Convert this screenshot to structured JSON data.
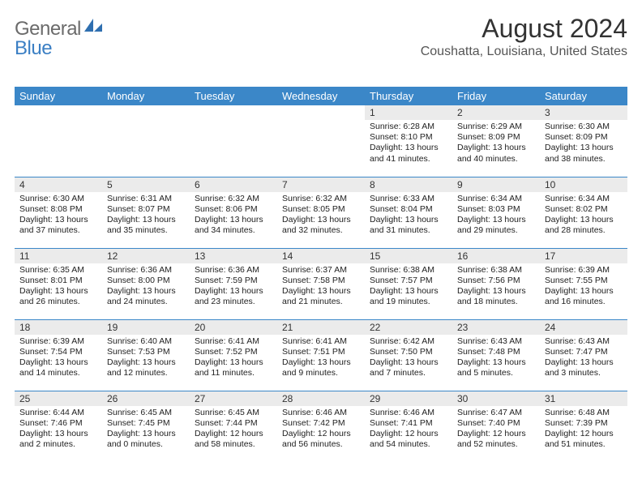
{
  "logo": {
    "general": "General",
    "blue": "Blue"
  },
  "title": "August 2024",
  "location": "Coushatta, Louisiana, United States",
  "colors": {
    "header_bg": "#3b87c8",
    "header_text": "#ffffff",
    "daynum_bg": "#ebebeb",
    "row_border": "#3b87c8",
    "logo_gray": "#6b6b6b",
    "logo_blue": "#3b7fc4"
  },
  "weekdays": [
    "Sunday",
    "Monday",
    "Tuesday",
    "Wednesday",
    "Thursday",
    "Friday",
    "Saturday"
  ],
  "weeks": [
    [
      {
        "empty": true
      },
      {
        "empty": true
      },
      {
        "empty": true
      },
      {
        "empty": true
      },
      {
        "n": "1",
        "sr": "6:28 AM",
        "ss": "8:10 PM",
        "dl": "13 hours and 41 minutes."
      },
      {
        "n": "2",
        "sr": "6:29 AM",
        "ss": "8:09 PM",
        "dl": "13 hours and 40 minutes."
      },
      {
        "n": "3",
        "sr": "6:30 AM",
        "ss": "8:09 PM",
        "dl": "13 hours and 38 minutes."
      }
    ],
    [
      {
        "n": "4",
        "sr": "6:30 AM",
        "ss": "8:08 PM",
        "dl": "13 hours and 37 minutes."
      },
      {
        "n": "5",
        "sr": "6:31 AM",
        "ss": "8:07 PM",
        "dl": "13 hours and 35 minutes."
      },
      {
        "n": "6",
        "sr": "6:32 AM",
        "ss": "8:06 PM",
        "dl": "13 hours and 34 minutes."
      },
      {
        "n": "7",
        "sr": "6:32 AM",
        "ss": "8:05 PM",
        "dl": "13 hours and 32 minutes."
      },
      {
        "n": "8",
        "sr": "6:33 AM",
        "ss": "8:04 PM",
        "dl": "13 hours and 31 minutes."
      },
      {
        "n": "9",
        "sr": "6:34 AM",
        "ss": "8:03 PM",
        "dl": "13 hours and 29 minutes."
      },
      {
        "n": "10",
        "sr": "6:34 AM",
        "ss": "8:02 PM",
        "dl": "13 hours and 28 minutes."
      }
    ],
    [
      {
        "n": "11",
        "sr": "6:35 AM",
        "ss": "8:01 PM",
        "dl": "13 hours and 26 minutes."
      },
      {
        "n": "12",
        "sr": "6:36 AM",
        "ss": "8:00 PM",
        "dl": "13 hours and 24 minutes."
      },
      {
        "n": "13",
        "sr": "6:36 AM",
        "ss": "7:59 PM",
        "dl": "13 hours and 23 minutes."
      },
      {
        "n": "14",
        "sr": "6:37 AM",
        "ss": "7:58 PM",
        "dl": "13 hours and 21 minutes."
      },
      {
        "n": "15",
        "sr": "6:38 AM",
        "ss": "7:57 PM",
        "dl": "13 hours and 19 minutes."
      },
      {
        "n": "16",
        "sr": "6:38 AM",
        "ss": "7:56 PM",
        "dl": "13 hours and 18 minutes."
      },
      {
        "n": "17",
        "sr": "6:39 AM",
        "ss": "7:55 PM",
        "dl": "13 hours and 16 minutes."
      }
    ],
    [
      {
        "n": "18",
        "sr": "6:39 AM",
        "ss": "7:54 PM",
        "dl": "13 hours and 14 minutes."
      },
      {
        "n": "19",
        "sr": "6:40 AM",
        "ss": "7:53 PM",
        "dl": "13 hours and 12 minutes."
      },
      {
        "n": "20",
        "sr": "6:41 AM",
        "ss": "7:52 PM",
        "dl": "13 hours and 11 minutes."
      },
      {
        "n": "21",
        "sr": "6:41 AM",
        "ss": "7:51 PM",
        "dl": "13 hours and 9 minutes."
      },
      {
        "n": "22",
        "sr": "6:42 AM",
        "ss": "7:50 PM",
        "dl": "13 hours and 7 minutes."
      },
      {
        "n": "23",
        "sr": "6:43 AM",
        "ss": "7:48 PM",
        "dl": "13 hours and 5 minutes."
      },
      {
        "n": "24",
        "sr": "6:43 AM",
        "ss": "7:47 PM",
        "dl": "13 hours and 3 minutes."
      }
    ],
    [
      {
        "n": "25",
        "sr": "6:44 AM",
        "ss": "7:46 PM",
        "dl": "13 hours and 2 minutes."
      },
      {
        "n": "26",
        "sr": "6:45 AM",
        "ss": "7:45 PM",
        "dl": "13 hours and 0 minutes."
      },
      {
        "n": "27",
        "sr": "6:45 AM",
        "ss": "7:44 PM",
        "dl": "12 hours and 58 minutes."
      },
      {
        "n": "28",
        "sr": "6:46 AM",
        "ss": "7:42 PM",
        "dl": "12 hours and 56 minutes."
      },
      {
        "n": "29",
        "sr": "6:46 AM",
        "ss": "7:41 PM",
        "dl": "12 hours and 54 minutes."
      },
      {
        "n": "30",
        "sr": "6:47 AM",
        "ss": "7:40 PM",
        "dl": "12 hours and 52 minutes."
      },
      {
        "n": "31",
        "sr": "6:48 AM",
        "ss": "7:39 PM",
        "dl": "12 hours and 51 minutes."
      }
    ]
  ],
  "labels": {
    "sunrise": "Sunrise:",
    "sunset": "Sunset:",
    "daylight": "Daylight:"
  }
}
